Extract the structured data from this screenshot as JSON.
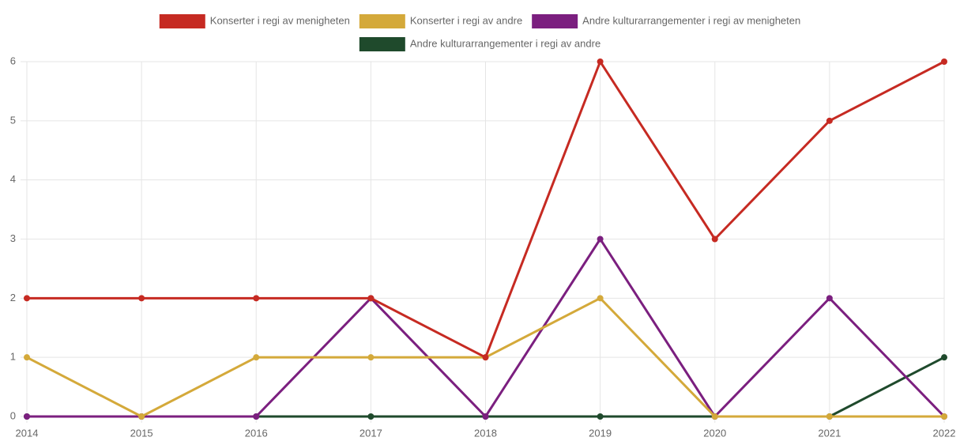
{
  "chart_data": {
    "type": "line",
    "categories": [
      "2014",
      "2015",
      "2016",
      "2017",
      "2018",
      "2019",
      "2020",
      "2021",
      "2022"
    ],
    "series": [
      {
        "name": "Konserter i regi av menigheten",
        "color": "#c62a22",
        "values": [
          2,
          2,
          2,
          2,
          1,
          6,
          3,
          5,
          6
        ]
      },
      {
        "name": "Konserter i regi av andre",
        "color": "#d4a93a",
        "values": [
          1,
          0,
          1,
          1,
          1,
          2,
          0,
          0,
          0
        ]
      },
      {
        "name": "Andre kulturarrangementer i regi av menigheten",
        "color": "#7b1f7f",
        "values": [
          0,
          0,
          0,
          2,
          0,
          3,
          0,
          2,
          0
        ]
      },
      {
        "name": "Andre kulturarrangementer i regi av andre",
        "color": "#1f4a2c",
        "values": [
          0,
          0,
          0,
          0,
          0,
          0,
          0,
          0,
          1
        ]
      }
    ],
    "ylim": [
      0,
      6
    ],
    "yticks": [
      0,
      1,
      2,
      3,
      4,
      5,
      6
    ],
    "grid": true,
    "legend": "top"
  }
}
